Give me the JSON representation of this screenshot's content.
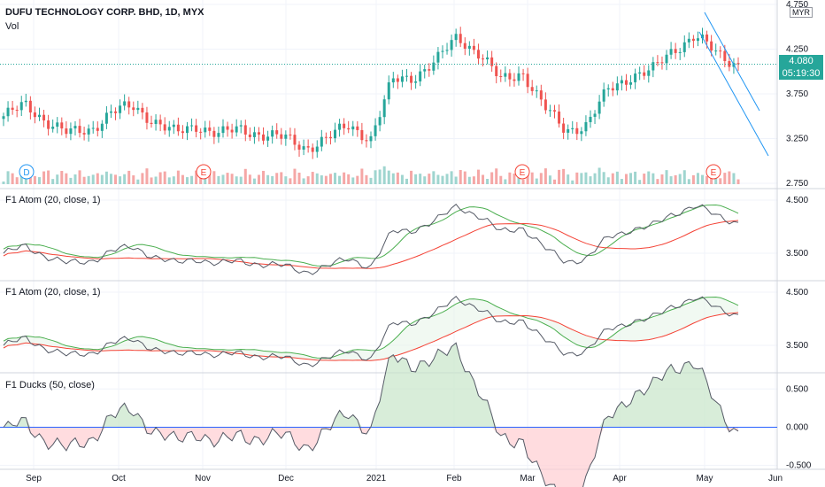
{
  "header": {
    "symbol_title": "DUFU TECHNOLOGY CORP. BHD, 1D, MYX",
    "volume_label": "Vol",
    "currency": "MYR",
    "last_price": "4.080",
    "countdown": "05:19:30"
  },
  "x_axis": {
    "labels": [
      "Sep",
      "Oct",
      "Nov",
      "Dec",
      "2021",
      "Feb",
      "Mar",
      "Apr",
      "May",
      "Jun"
    ]
  },
  "event_markers": [
    "D",
    "E",
    "E",
    "E"
  ],
  "colors": {
    "up": "#26a69a",
    "down": "#ef5350",
    "fast_line": "#4caf50",
    "slow_line": "#f44336",
    "close_line": "#555a66",
    "zero_line": "#2962ff",
    "badge": "#26a69a",
    "trend": "#2196f3"
  },
  "panes": [
    {
      "title": "F1 Atom (20, close, 1)",
      "y_ticks": [
        "4.500",
        "3.500"
      ]
    },
    {
      "title": "F1 Atom (20, close, 1)",
      "y_ticks": [
        "4.500",
        "3.500"
      ]
    },
    {
      "title": "F1 Ducks (50, close)",
      "y_ticks": [
        "0.500",
        "0.000",
        "-0.500"
      ]
    }
  ],
  "chart_data": [
    {
      "type": "candlestick",
      "title": "DUFU TECHNOLOGY CORP. BHD, 1D, MYX",
      "y_ticks": [
        "4.750",
        "4.250",
        "3.750",
        "3.250",
        "2.750"
      ],
      "ylim": [
        2.75,
        4.75
      ],
      "close_series": [
        {
          "month": "Sep",
          "value": 3.5
        },
        {
          "month": "Sep",
          "value": 3.62
        },
        {
          "month": "Sep",
          "value": 3.45
        },
        {
          "month": "Sep",
          "value": 3.3
        },
        {
          "month": "Oct",
          "value": 3.35
        },
        {
          "month": "Oct",
          "value": 3.55
        },
        {
          "month": "Oct",
          "value": 3.6
        },
        {
          "month": "Oct",
          "value": 3.45
        },
        {
          "month": "Nov",
          "value": 3.3
        },
        {
          "month": "Nov",
          "value": 3.4
        },
        {
          "month": "Nov",
          "value": 3.3
        },
        {
          "month": "Nov",
          "value": 3.35
        },
        {
          "month": "Dec",
          "value": 3.3
        },
        {
          "month": "Dec",
          "value": 3.25
        },
        {
          "month": "Dec",
          "value": 3.15
        },
        {
          "month": "Dec",
          "value": 3.25
        },
        {
          "month": "2021",
          "value": 3.4
        },
        {
          "month": "2021",
          "value": 3.25
        },
        {
          "month": "2021",
          "value": 3.9
        },
        {
          "month": "2021",
          "value": 3.95
        },
        {
          "month": "Feb",
          "value": 4.1
        },
        {
          "month": "Feb",
          "value": 4.4
        },
        {
          "month": "Feb",
          "value": 4.2
        },
        {
          "month": "Feb",
          "value": 3.9
        },
        {
          "month": "Mar",
          "value": 4.0
        },
        {
          "month": "Mar",
          "value": 3.6
        },
        {
          "month": "Mar",
          "value": 3.35
        },
        {
          "month": "Mar",
          "value": 3.4
        },
        {
          "month": "Apr",
          "value": 3.8
        },
        {
          "month": "Apr",
          "value": 3.95
        },
        {
          "month": "Apr",
          "value": 4.0
        },
        {
          "month": "Apr",
          "value": 4.25
        },
        {
          "month": "May",
          "value": 4.4
        },
        {
          "month": "May",
          "value": 4.2
        },
        {
          "month": "May",
          "value": 4.08
        }
      ],
      "volume_label": "Vol"
    },
    {
      "type": "line",
      "title": "F1 Atom (20, close, 1)",
      "y_ticks": [
        "4.500",
        "3.500"
      ],
      "ylim": [
        3.0,
        4.7
      ]
    },
    {
      "type": "line",
      "title": "F1 Atom (20, close, 1)",
      "y_ticks": [
        "4.500",
        "3.500"
      ],
      "ylim": [
        3.0,
        4.7
      ]
    },
    {
      "type": "area",
      "title": "F1 Ducks (50, close)",
      "y_ticks": [
        "0.500",
        "0.000",
        "-0.500"
      ],
      "ylim": [
        -0.5,
        0.65
      ]
    }
  ]
}
